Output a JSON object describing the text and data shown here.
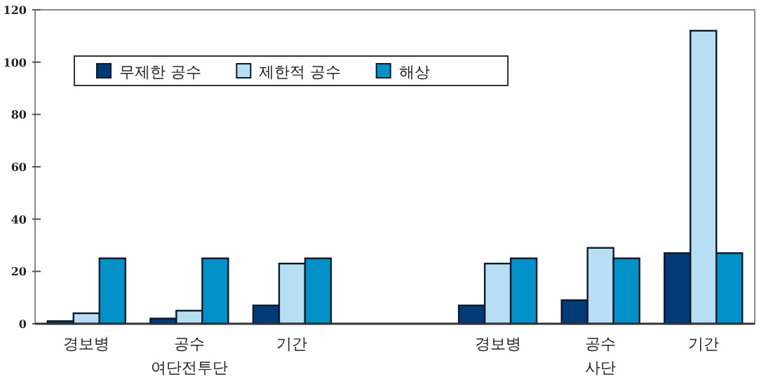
{
  "chart_data": {
    "type": "bar",
    "categories": [
      "경보병",
      "공수",
      "기간",
      null,
      "경보병",
      "공수",
      "기간"
    ],
    "series": [
      {
        "name": "무제한 공수",
        "color": "#003a78",
        "values": [
          1,
          2,
          7,
          null,
          7,
          9,
          27
        ]
      },
      {
        "name": "제한적 공수",
        "color": "#b8def4",
        "values": [
          4,
          5,
          23,
          null,
          23,
          29,
          112
        ]
      },
      {
        "name": "해상",
        "color": "#0091c8",
        "values": [
          25,
          25,
          25,
          null,
          25,
          25,
          27
        ]
      }
    ],
    "ylim": [
      0,
      120
    ],
    "yticks": [
      0,
      20,
      40,
      60,
      80,
      100,
      120
    ],
    "legend": "top left",
    "grid": false,
    "annotations": [
      "여단전투단",
      "사단"
    ]
  }
}
